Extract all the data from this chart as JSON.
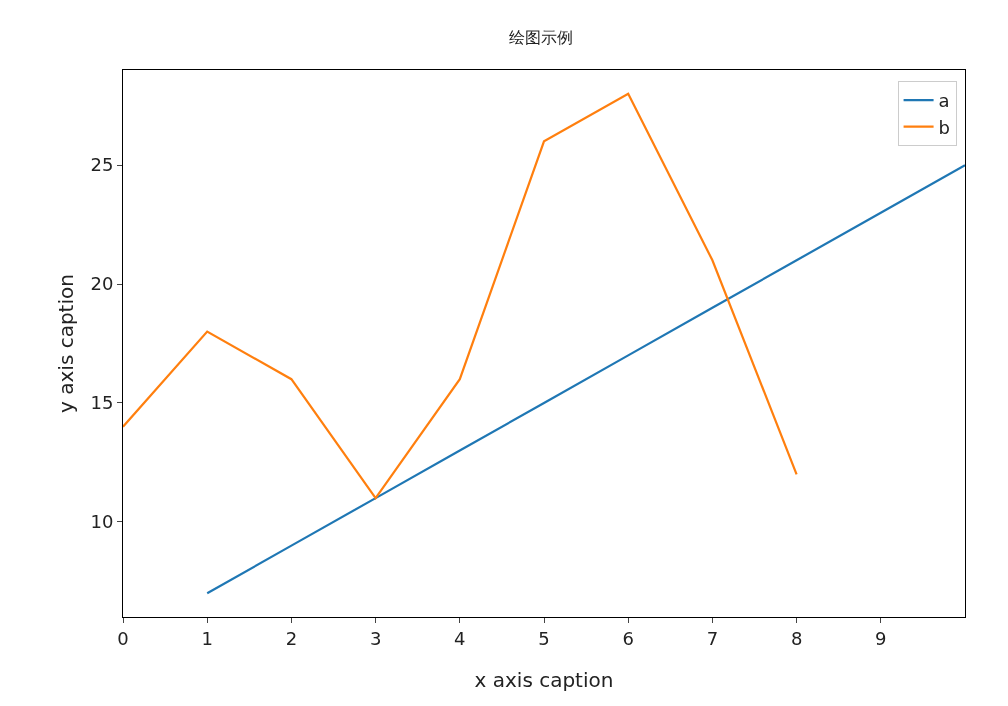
{
  "chart_data": {
    "type": "line",
    "title": "绘图示例",
    "xlabel": "x axis caption",
    "ylabel": "y axis caption",
    "xlim": [
      0,
      10
    ],
    "xticks": [
      0,
      1,
      2,
      3,
      4,
      5,
      6,
      7,
      8,
      9
    ],
    "ylim": [
      6,
      29
    ],
    "yticks": [
      10,
      15,
      20,
      25
    ],
    "grid": false,
    "legend": "top right",
    "marker": "none",
    "line_style": "solid",
    "series": [
      {
        "name": "a",
        "color": "#1f77b4",
        "x": [
          1,
          2,
          3,
          4,
          5,
          6,
          7,
          8,
          9,
          10
        ],
        "values": [
          7,
          9,
          11,
          13,
          15,
          17,
          19,
          21,
          23,
          25
        ]
      },
      {
        "name": "b",
        "color": "#ff7f0e",
        "x": [
          0,
          1,
          2,
          3,
          4,
          5,
          6,
          7,
          8
        ],
        "values": [
          14,
          18,
          16,
          11,
          16,
          26,
          28,
          21,
          12
        ]
      }
    ]
  }
}
